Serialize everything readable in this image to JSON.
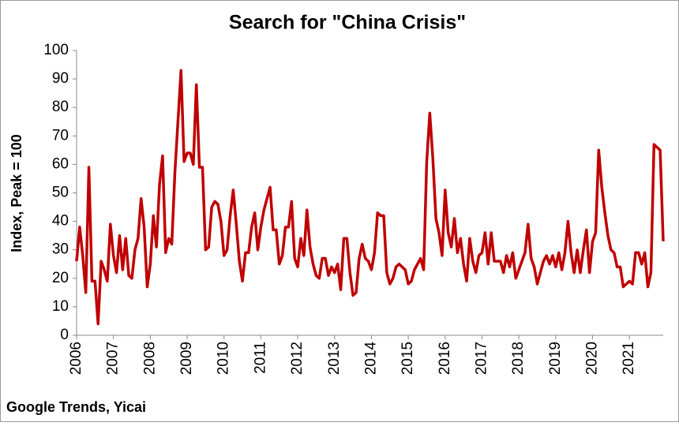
{
  "chart_data": {
    "type": "line",
    "title": "Search for \"China Crisis\"",
    "y_label": "Index, Peak = 100",
    "source": "Google Trends, Yicai",
    "categories": [
      "2006",
      null,
      null,
      null,
      null,
      null,
      null,
      null,
      null,
      null,
      null,
      null,
      "2007",
      null,
      null,
      null,
      null,
      null,
      null,
      null,
      null,
      null,
      null,
      null,
      "2008",
      null,
      null,
      null,
      null,
      null,
      null,
      null,
      null,
      null,
      null,
      null,
      "2009",
      null,
      null,
      null,
      null,
      null,
      null,
      null,
      null,
      null,
      null,
      null,
      "2010",
      null,
      null,
      null,
      null,
      null,
      null,
      null,
      null,
      null,
      null,
      null,
      "2011",
      null,
      null,
      null,
      null,
      null,
      null,
      null,
      null,
      null,
      null,
      null,
      "2012",
      null,
      null,
      null,
      null,
      null,
      null,
      null,
      null,
      null,
      null,
      null,
      "2013",
      null,
      null,
      null,
      null,
      null,
      null,
      null,
      null,
      null,
      null,
      null,
      "2014",
      null,
      null,
      null,
      null,
      null,
      null,
      null,
      null,
      null,
      null,
      null,
      "2015",
      null,
      null,
      null,
      null,
      null,
      null,
      null,
      null,
      null,
      null,
      null,
      "2016",
      null,
      null,
      null,
      null,
      null,
      null,
      null,
      null,
      null,
      null,
      null,
      "2017",
      null,
      null,
      null,
      null,
      null,
      null,
      null,
      null,
      null,
      null,
      null,
      "2018",
      null,
      null,
      null,
      null,
      null,
      null,
      null,
      null,
      null,
      null,
      null,
      "2019",
      null,
      null,
      null,
      null,
      null,
      null,
      null,
      null,
      null,
      null,
      null,
      "2020",
      null,
      null,
      null,
      null,
      null,
      null,
      null,
      null,
      null,
      null,
      null,
      "2021",
      null,
      null,
      null,
      null,
      null,
      null,
      null,
      null,
      null,
      null,
      null
    ],
    "series": [
      {
        "name": "China Crisis",
        "color": "#c00000",
        "values": [
          26,
          38,
          28,
          15,
          59,
          19,
          19,
          4,
          26,
          23,
          19,
          39,
          28,
          22,
          35,
          23,
          34,
          21,
          20,
          30,
          34,
          48,
          38,
          17,
          25,
          42,
          31,
          53,
          63,
          29,
          34,
          32,
          57,
          75,
          93,
          61,
          64,
          64,
          60,
          88,
          59,
          59,
          30,
          31,
          45,
          47,
          46,
          40,
          28,
          30,
          42,
          51,
          39,
          26,
          19,
          29,
          29,
          38,
          43,
          30,
          38,
          44,
          48,
          52,
          37,
          37,
          25,
          28,
          38,
          38,
          47,
          27,
          24,
          34,
          28,
          44,
          31,
          25,
          21,
          20,
          27,
          27,
          21,
          24,
          22,
          25,
          16,
          34,
          34,
          22,
          14,
          15,
          27,
          32,
          27,
          26,
          23,
          29,
          43,
          42,
          42,
          22,
          18,
          20,
          24,
          25,
          24,
          23,
          18,
          19,
          23,
          25,
          27,
          23,
          61,
          78,
          62,
          41,
          36,
          28,
          51,
          36,
          31,
          41,
          29,
          34,
          25,
          19,
          34,
          26,
          22,
          28,
          29,
          36,
          25,
          36,
          26,
          26,
          26,
          22,
          28,
          24,
          29,
          20,
          23,
          26,
          29,
          39,
          27,
          24,
          18,
          22,
          26,
          28,
          25,
          28,
          24,
          29,
          23,
          29,
          40,
          29,
          22,
          30,
          22,
          30,
          37,
          22,
          33,
          36,
          65,
          52,
          43,
          35,
          30,
          29,
          24,
          24,
          17,
          18,
          19,
          18,
          29,
          29,
          25,
          29,
          17,
          22,
          67,
          66,
          65,
          33
        ]
      }
    ],
    "ylim": [
      0,
      100
    ],
    "yticks": [
      0,
      10,
      20,
      30,
      40,
      50,
      60,
      70,
      80,
      90,
      100
    ],
    "grid": false
  }
}
